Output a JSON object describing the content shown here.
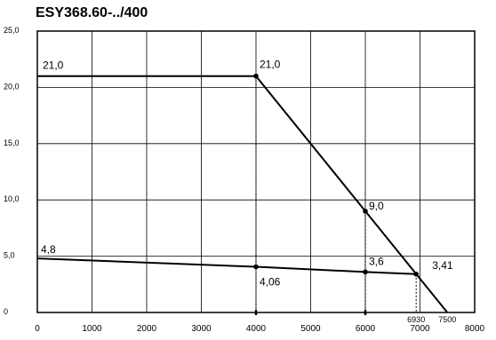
{
  "chart_data": {
    "type": "line",
    "title": "ESY368.60-../400",
    "xlabel": "",
    "ylabel": "",
    "xlim": [
      0,
      8000
    ],
    "ylim": [
      0,
      25
    ],
    "grid": true,
    "x_ticks": [
      {
        "value": 0,
        "label": "0"
      },
      {
        "value": 1000,
        "label": "1000"
      },
      {
        "value": 2000,
        "label": "2000"
      },
      {
        "value": 3000,
        "label": "3000"
      },
      {
        "value": 4000,
        "label": "4000"
      },
      {
        "value": 5000,
        "label": "5000"
      },
      {
        "value": 6000,
        "label": "6000"
      },
      {
        "value": 7000,
        "label": "7000"
      },
      {
        "value": 8000,
        "label": "8000"
      }
    ],
    "y_ticks": [
      {
        "value": 0,
        "label": "0"
      },
      {
        "value": 5,
        "label": "5,0"
      },
      {
        "value": 10,
        "label": "10,0"
      },
      {
        "value": 15,
        "label": "15,0"
      },
      {
        "value": 20,
        "label": "20,0"
      },
      {
        "value": 25,
        "label": "25,0"
      }
    ],
    "extra_x_ticks": [
      {
        "value": 6930,
        "label": "6930"
      },
      {
        "value": 7500,
        "label": "7500"
      }
    ],
    "series": [
      {
        "x": [
          0,
          4000,
          6000,
          7500
        ],
        "y": [
          21.0,
          21.0,
          9.0,
          0
        ],
        "point_labels": [
          "21,0",
          "21,0",
          "9,0",
          ""
        ],
        "markers": [
          false,
          true,
          true,
          false
        ]
      },
      {
        "x": [
          0,
          4000,
          6000,
          6930
        ],
        "y": [
          4.8,
          4.06,
          3.6,
          3.41
        ],
        "point_labels": [
          "4,8",
          "4,06",
          "3,6",
          "3,41"
        ],
        "markers": [
          false,
          true,
          true,
          true
        ]
      }
    ],
    "dashed_guides": [
      {
        "x": 4000,
        "y": 21.0
      },
      {
        "x": 6000,
        "y": 9.0
      },
      {
        "x": 6930,
        "y": 3.41
      }
    ]
  }
}
